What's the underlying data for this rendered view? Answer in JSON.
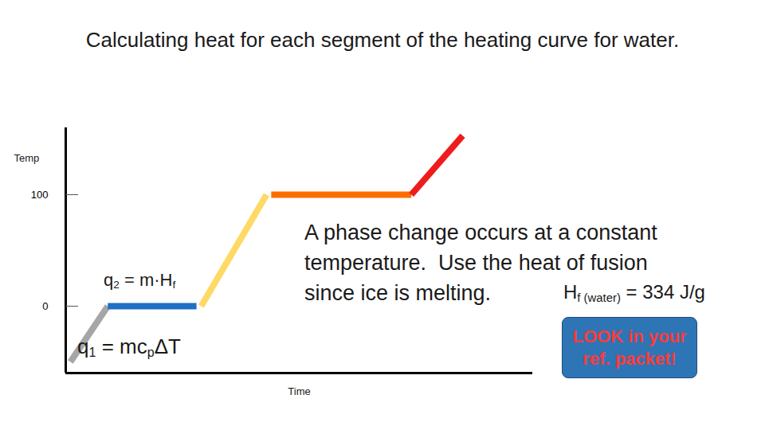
{
  "chart_data": {
    "type": "line",
    "title": "Calculating heat for each segment of the heating curve for water.",
    "xlabel": "Time",
    "ylabel": "Temp",
    "xlim": [
      0,
      100
    ],
    "ylim": [
      -60,
      160
    ],
    "yticks": [
      0,
      100
    ],
    "tick_labels": "y",
    "grid": false,
    "series": [
      {
        "color": "#a6a6a6",
        "x": [
          1,
          9
        ],
        "values": [
          -50,
          0
        ]
      },
      {
        "color": "#1f6fc5",
        "x": [
          9,
          28
        ],
        "values": [
          0,
          0
        ]
      },
      {
        "color": "#ffd966",
        "x": [
          29,
          43
        ],
        "values": [
          0,
          100
        ]
      },
      {
        "color": "#ff6d00",
        "x": [
          44,
          74
        ],
        "values": [
          100,
          100
        ]
      },
      {
        "color": "#ee1c1c",
        "x": [
          74,
          85
        ],
        "values": [
          100,
          153
        ]
      }
    ],
    "annotations": [
      {
        "parts": [
          {
            "text": "q"
          },
          {
            "text": "1",
            "sub": true
          },
          {
            "text": " = mc"
          },
          {
            "text": "p",
            "sub": true
          },
          {
            "text": "ΔT"
          }
        ]
      },
      {
        "parts": [
          {
            "text": "q"
          },
          {
            "text": "2",
            "sub": true
          },
          {
            "text": " = m·H"
          },
          {
            "text": "f",
            "sub": true
          }
        ]
      },
      {
        "lines": [
          "A phase change occurs at a constant",
          "temperature.  Use the heat of fusion",
          "since ice is melting."
        ]
      },
      {
        "parts": [
          {
            "text": "H"
          },
          {
            "text": "f (water)",
            "sub": true
          },
          {
            "text": " = 334 J/g"
          }
        ]
      },
      {
        "lines": [
          "LOOK in your",
          "ref. packet!"
        ]
      }
    ]
  }
}
